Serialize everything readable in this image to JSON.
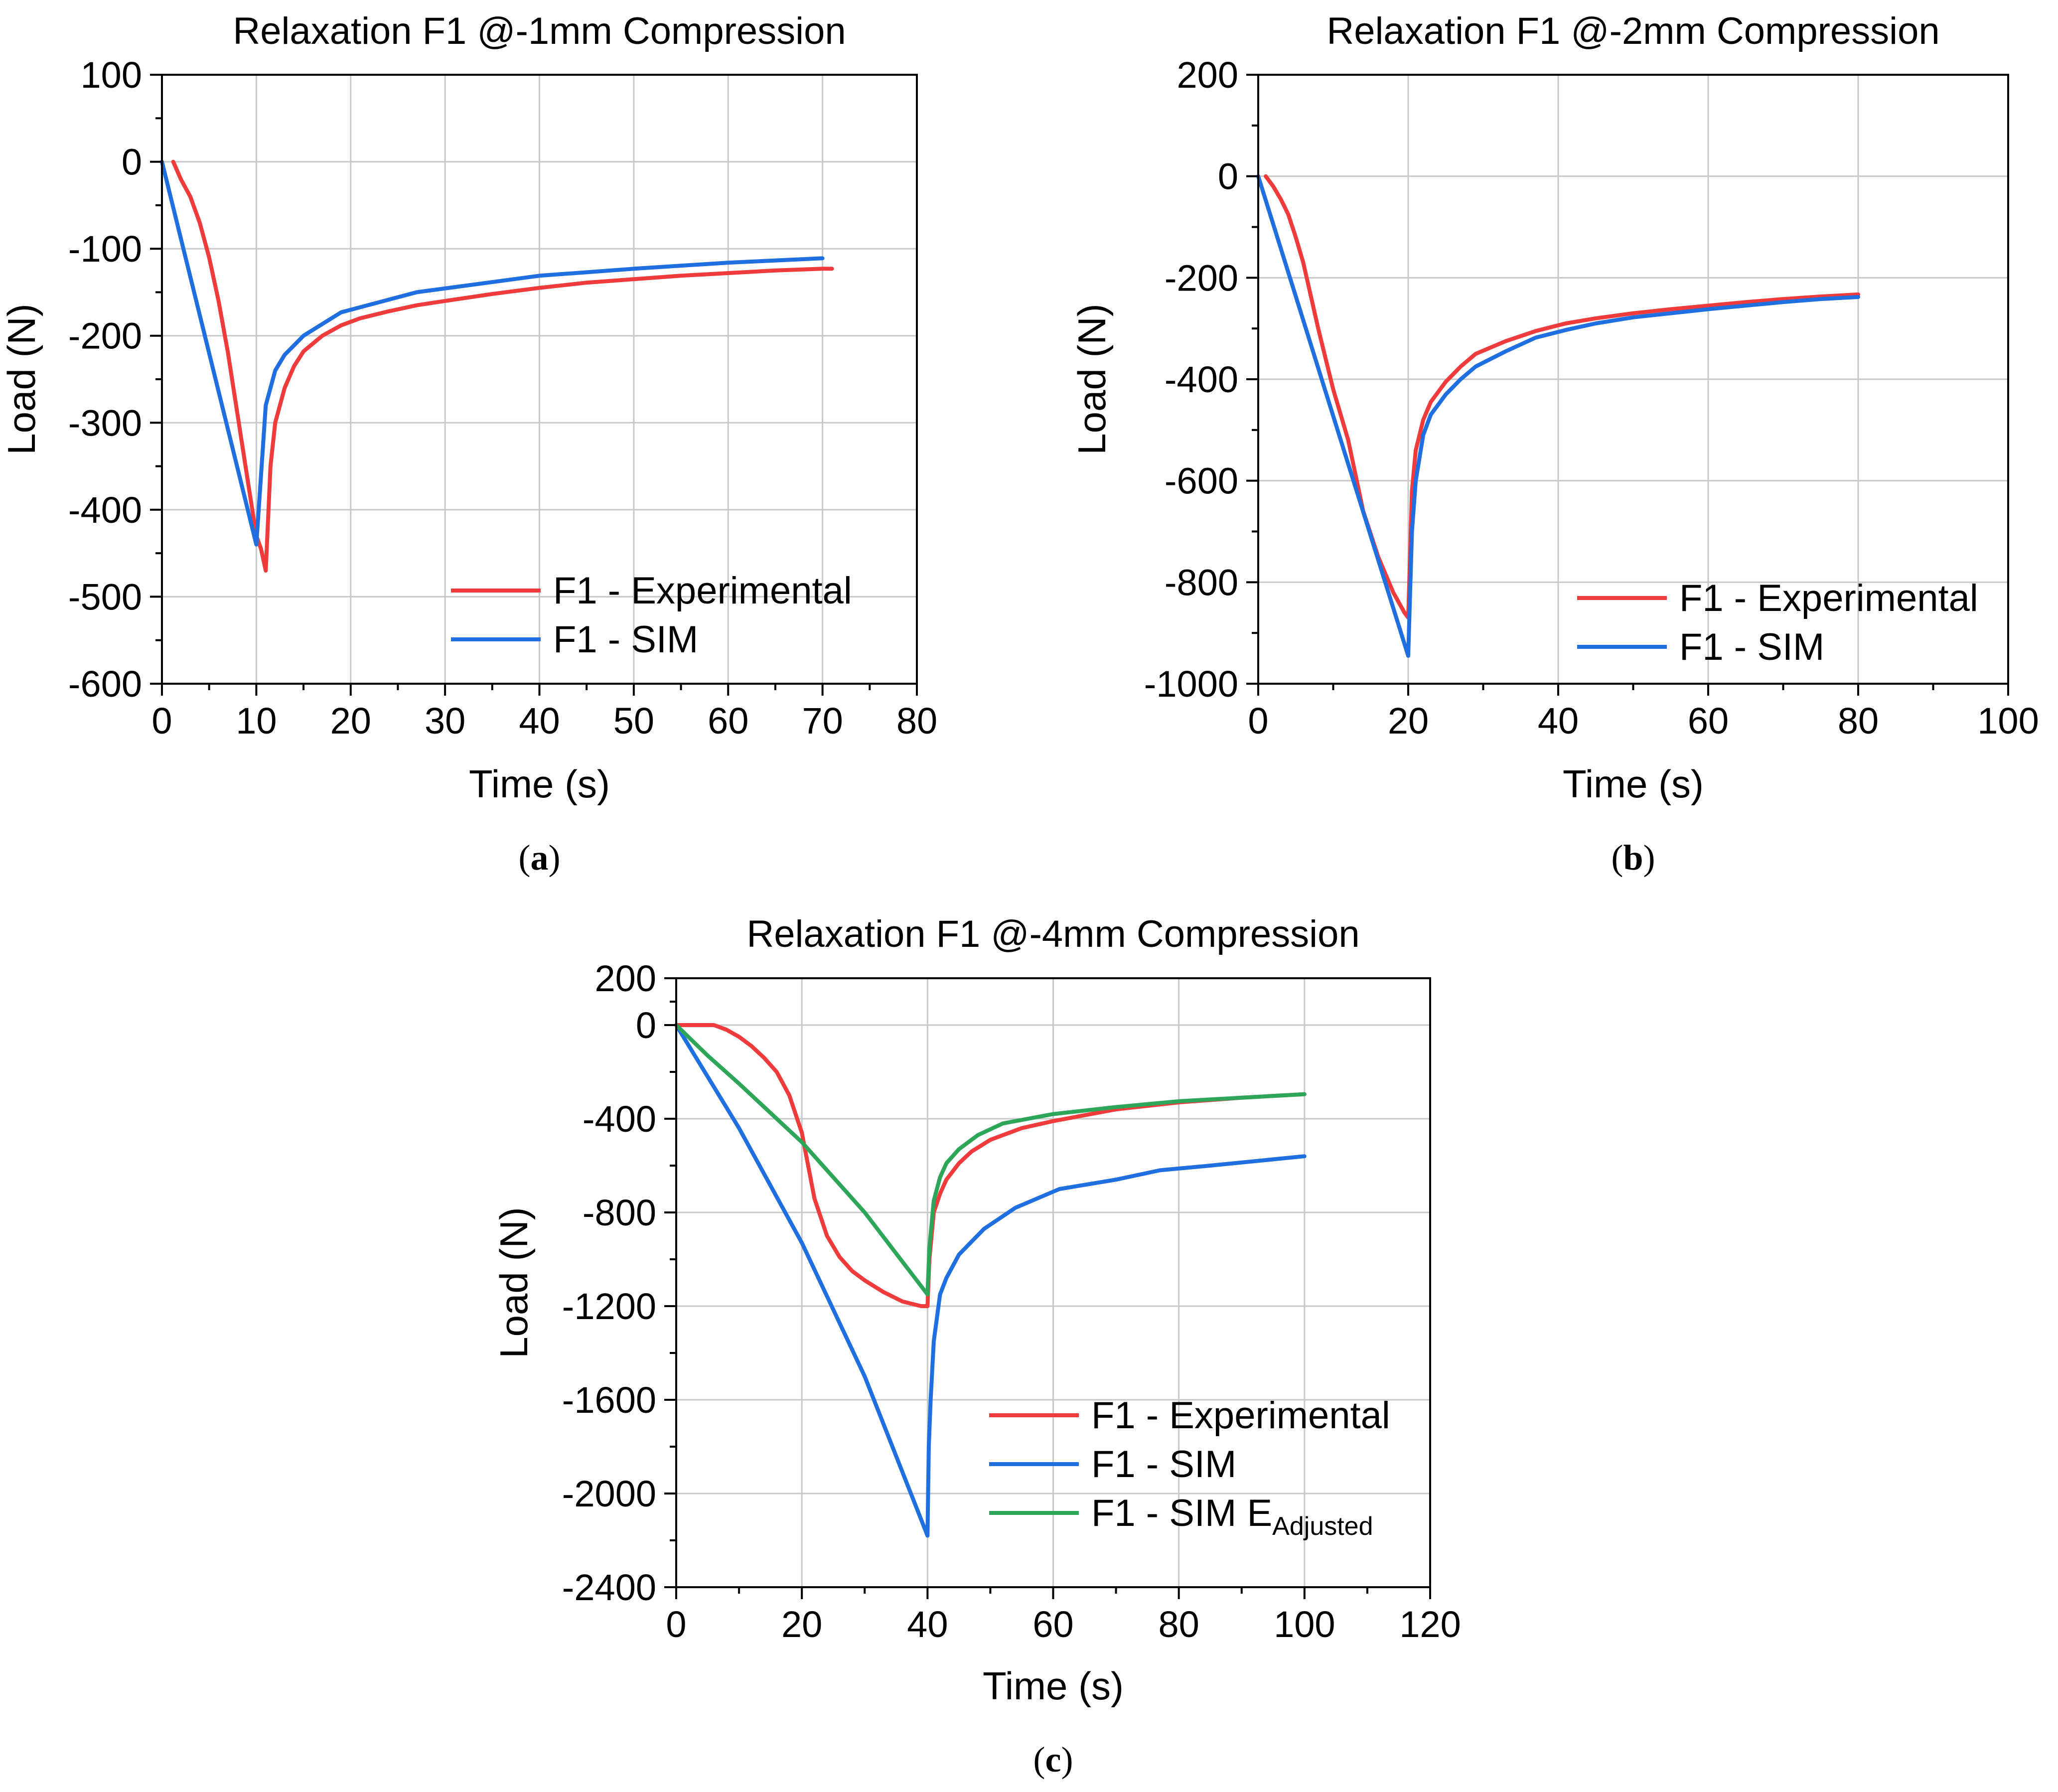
{
  "colors": {
    "experimental": "#ef3b3b",
    "sim": "#1f6fe0",
    "sim_adjusted": "#2ea65a",
    "grid": "#c8c8c8",
    "axis": "#000000"
  },
  "chart_data": [
    {
      "id": "a",
      "type": "line",
      "title": "Relaxation F1 @-1mm Compression",
      "xlabel": "Time (s)",
      "ylabel": "Load (N)",
      "xlim": [
        0,
        80
      ],
      "ylim": [
        -600,
        100
      ],
      "xticks": [
        0,
        10,
        20,
        30,
        40,
        50,
        60,
        70,
        80
      ],
      "yticks": [
        100,
        0,
        -100,
        -200,
        -300,
        -400,
        -500,
        -600
      ],
      "grid": true,
      "legend_position": "bottom-right",
      "caption": "(a)",
      "series": [
        {
          "name": "F1 - Experimental",
          "color_key": "experimental",
          "x": [
            1.2,
            2,
            3,
            4,
            5,
            6,
            7,
            8,
            9,
            10,
            10.5,
            11,
            11.5,
            12,
            13,
            14,
            15,
            17,
            19,
            21,
            24,
            27,
            30,
            35,
            40,
            45,
            50,
            55,
            60,
            65,
            70,
            71
          ],
          "y": [
            0,
            -20,
            -40,
            -70,
            -110,
            -160,
            -220,
            -290,
            -360,
            -430,
            -445,
            -470,
            -350,
            -300,
            -260,
            -235,
            -218,
            -200,
            -188,
            -180,
            -172,
            -165,
            -160,
            -152,
            -145,
            -139,
            -135,
            -131,
            -128,
            -125,
            -123,
            -123
          ]
        },
        {
          "name": "F1 - SIM",
          "color_key": "sim",
          "x": [
            0,
            10,
            11,
            12,
            13,
            15,
            19,
            27,
            40,
            50,
            60,
            70
          ],
          "y": [
            0,
            -440,
            -280,
            -240,
            -222,
            -200,
            -173,
            -150,
            -131,
            -123,
            -116,
            -111
          ]
        }
      ]
    },
    {
      "id": "b",
      "type": "line",
      "title": "Relaxation F1 @-2mm Compression",
      "xlabel": "Time (s)",
      "ylabel": "Load (N)",
      "xlim": [
        0,
        100
      ],
      "ylim": [
        -1000,
        200
      ],
      "xticks": [
        0,
        20,
        40,
        60,
        80,
        100
      ],
      "yticks": [
        200,
        0,
        -200,
        -400,
        -600,
        -800,
        -1000
      ],
      "grid": true,
      "legend_position": "bottom-right",
      "caption": "(b)",
      "series": [
        {
          "name": "F1 - Experimental",
          "color_key": "experimental",
          "x": [
            1,
            2,
            3,
            4,
            5,
            6,
            8,
            10,
            12,
            14,
            16,
            18,
            19.5,
            20,
            20.5,
            21,
            22,
            23,
            25,
            27,
            29,
            33,
            37,
            41,
            45,
            50,
            55,
            60,
            65,
            70,
            75,
            80
          ],
          "y": [
            0,
            -20,
            -45,
            -75,
            -120,
            -170,
            -300,
            -420,
            -520,
            -660,
            -750,
            -820,
            -860,
            -870,
            -620,
            -540,
            -480,
            -445,
            -405,
            -375,
            -350,
            -325,
            -305,
            -290,
            -280,
            -270,
            -262,
            -255,
            -248,
            -242,
            -237,
            -233
          ]
        },
        {
          "name": "F1 - SIM",
          "color_key": "sim",
          "x": [
            0,
            20,
            20.5,
            21,
            22,
            23,
            25,
            27,
            29,
            33,
            37,
            41,
            45,
            50,
            55,
            60,
            65,
            70,
            75,
            80
          ],
          "y": [
            0,
            -945,
            -700,
            -600,
            -510,
            -470,
            -430,
            -400,
            -375,
            -345,
            -318,
            -303,
            -290,
            -278,
            -270,
            -262,
            -255,
            -248,
            -242,
            -238
          ]
        }
      ]
    },
    {
      "id": "c",
      "type": "line",
      "title": "Relaxation F1 @-4mm Compression",
      "xlabel": "Time (s)",
      "ylabel": "Load (N)",
      "xlim": [
        0,
        120
      ],
      "ylim": [
        -2400,
        200
      ],
      "xticks": [
        0,
        20,
        40,
        60,
        80,
        100,
        120
      ],
      "yticks": [
        200,
        0,
        -400,
        -800,
        -1200,
        -1600,
        -2000,
        -2400
      ],
      "grid": true,
      "legend_position": "bottom-right",
      "caption": "(c)",
      "series": [
        {
          "name": "F1 - Experimental",
          "color_key": "experimental",
          "x": [
            0,
            6,
            8,
            10,
            12,
            14,
            16,
            18,
            20,
            21,
            22,
            24,
            26,
            28,
            30,
            33,
            36,
            39,
            40,
            40.3,
            41,
            42,
            43,
            45,
            47,
            50,
            55,
            60,
            70,
            80,
            90,
            100
          ],
          "y": [
            0,
            0,
            -20,
            -50,
            -90,
            -140,
            -200,
            -300,
            -460,
            -600,
            -740,
            -900,
            -990,
            -1050,
            -1090,
            -1140,
            -1180,
            -1200,
            -1200,
            -1000,
            -800,
            -720,
            -660,
            -590,
            -540,
            -490,
            -440,
            -410,
            -360,
            -330,
            -310,
            -295
          ]
        },
        {
          "name": "F1 - SIM",
          "color_key": "sim",
          "x": [
            0,
            10,
            20,
            30,
            40,
            40.2,
            40.5,
            41,
            42,
            43,
            45,
            49,
            54,
            61,
            70,
            77,
            85,
            100
          ],
          "y": [
            0,
            -440,
            -930,
            -1500,
            -2180,
            -1800,
            -1600,
            -1350,
            -1150,
            -1080,
            -980,
            -870,
            -780,
            -700,
            -660,
            -620,
            -600,
            -560
          ]
        },
        {
          "name": "F1 - SIM E_Adjusted",
          "color_key": "sim_adjusted",
          "x": [
            0,
            5,
            10,
            20,
            30,
            40,
            40.3,
            41,
            42,
            43,
            45,
            48,
            52,
            60,
            70,
            80,
            90,
            100
          ],
          "y": [
            0,
            -130,
            -250,
            -500,
            -800,
            -1150,
            -950,
            -750,
            -650,
            -590,
            -530,
            -470,
            -420,
            -380,
            -350,
            -325,
            -310,
            -295
          ]
        }
      ]
    }
  ]
}
